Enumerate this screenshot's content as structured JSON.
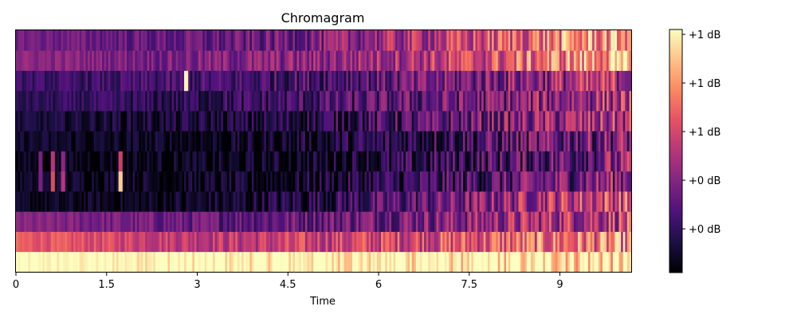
{
  "chart_data": {
    "type": "heatmap",
    "title": "Chromagram",
    "xlabel": "Time",
    "ylabel": "",
    "xlim": [
      0,
      10.18
    ],
    "xticks": [
      0,
      1.5,
      3,
      4.5,
      6,
      7.5,
      9
    ],
    "x_tick_labels": [
      "0",
      "1.5",
      "3",
      "4.5",
      "6",
      "7.5",
      "9"
    ],
    "yticks_visible": false,
    "n_bins": 12,
    "colormap": "magma",
    "colormap_stops": [
      "#000004",
      "#1c1044",
      "#4f127b",
      "#812581",
      "#b5367a",
      "#e55064",
      "#fb8761",
      "#fec287",
      "#fcfdbf"
    ],
    "colorbar": {
      "range": [
        0,
        1
      ],
      "tick_values": [
        0.18,
        0.38,
        0.58,
        0.78,
        0.98
      ],
      "tick_labels": [
        "+0 dB",
        "+0 dB",
        "+1 dB",
        "+1 dB",
        "+1 dB"
      ]
    },
    "bin_profiles": [
      {
        "bin": 0,
        "values": [
          1.0,
          1.0,
          1.0,
          1.0,
          1.0,
          1.0,
          1.0,
          0.98,
          0.95
        ]
      },
      {
        "bin": 1,
        "values": [
          0.65,
          0.6,
          0.55,
          0.52,
          0.55,
          0.58,
          0.62,
          0.68,
          0.7
        ]
      },
      {
        "bin": 2,
        "values": [
          0.38,
          0.35,
          0.32,
          0.3,
          0.32,
          0.36,
          0.4,
          0.48,
          0.55
        ]
      },
      {
        "bin": 3,
        "values": [
          0.05,
          0.05,
          0.05,
          0.08,
          0.15,
          0.25,
          0.35,
          0.5,
          0.6
        ]
      },
      {
        "bin": 4,
        "values": [
          0.06,
          0.08,
          0.05,
          0.04,
          0.08,
          0.15,
          0.22,
          0.32,
          0.42
        ]
      },
      {
        "bin": 5,
        "values": [
          0.05,
          0.04,
          0.04,
          0.03,
          0.05,
          0.12,
          0.2,
          0.28,
          0.38
        ]
      },
      {
        "bin": 6,
        "values": [
          0.08,
          0.06,
          0.05,
          0.04,
          0.08,
          0.15,
          0.22,
          0.3,
          0.38
        ]
      },
      {
        "bin": 7,
        "values": [
          0.1,
          0.1,
          0.1,
          0.1,
          0.15,
          0.22,
          0.3,
          0.4,
          0.48
        ]
      },
      {
        "bin": 8,
        "values": [
          0.15,
          0.18,
          0.15,
          0.18,
          0.22,
          0.28,
          0.32,
          0.4,
          0.5
        ]
      },
      {
        "bin": 9,
        "values": [
          0.2,
          0.2,
          0.22,
          0.22,
          0.25,
          0.3,
          0.35,
          0.42,
          0.5
        ]
      },
      {
        "bin": 10,
        "values": [
          0.4,
          0.38,
          0.35,
          0.38,
          0.4,
          0.48,
          0.55,
          0.7,
          0.82
        ]
      },
      {
        "bin": 11,
        "values": [
          0.35,
          0.32,
          0.3,
          0.3,
          0.35,
          0.45,
          0.55,
          0.7,
          0.8
        ]
      }
    ],
    "profile_times": [
      0,
      1.25,
      2.5,
      3.75,
      5.0,
      6.25,
      7.5,
      8.75,
      10.18
    ],
    "highlights": [
      {
        "t": 2.82,
        "bin": 9,
        "value": 0.98
      },
      {
        "t": 1.72,
        "bin": 4,
        "value": 0.9
      },
      {
        "t": 1.72,
        "bin": 5,
        "value": 0.55
      },
      {
        "t": 0.62,
        "bin": 4,
        "value": 0.6
      },
      {
        "t": 0.62,
        "bin": 5,
        "value": 0.5
      },
      {
        "t": 0.78,
        "bin": 4,
        "value": 0.5
      },
      {
        "t": 0.78,
        "bin": 5,
        "value": 0.4
      },
      {
        "t": 0.42,
        "bin": 5,
        "value": 0.35
      },
      {
        "t": 0.42,
        "bin": 4,
        "value": 0.35
      }
    ]
  }
}
